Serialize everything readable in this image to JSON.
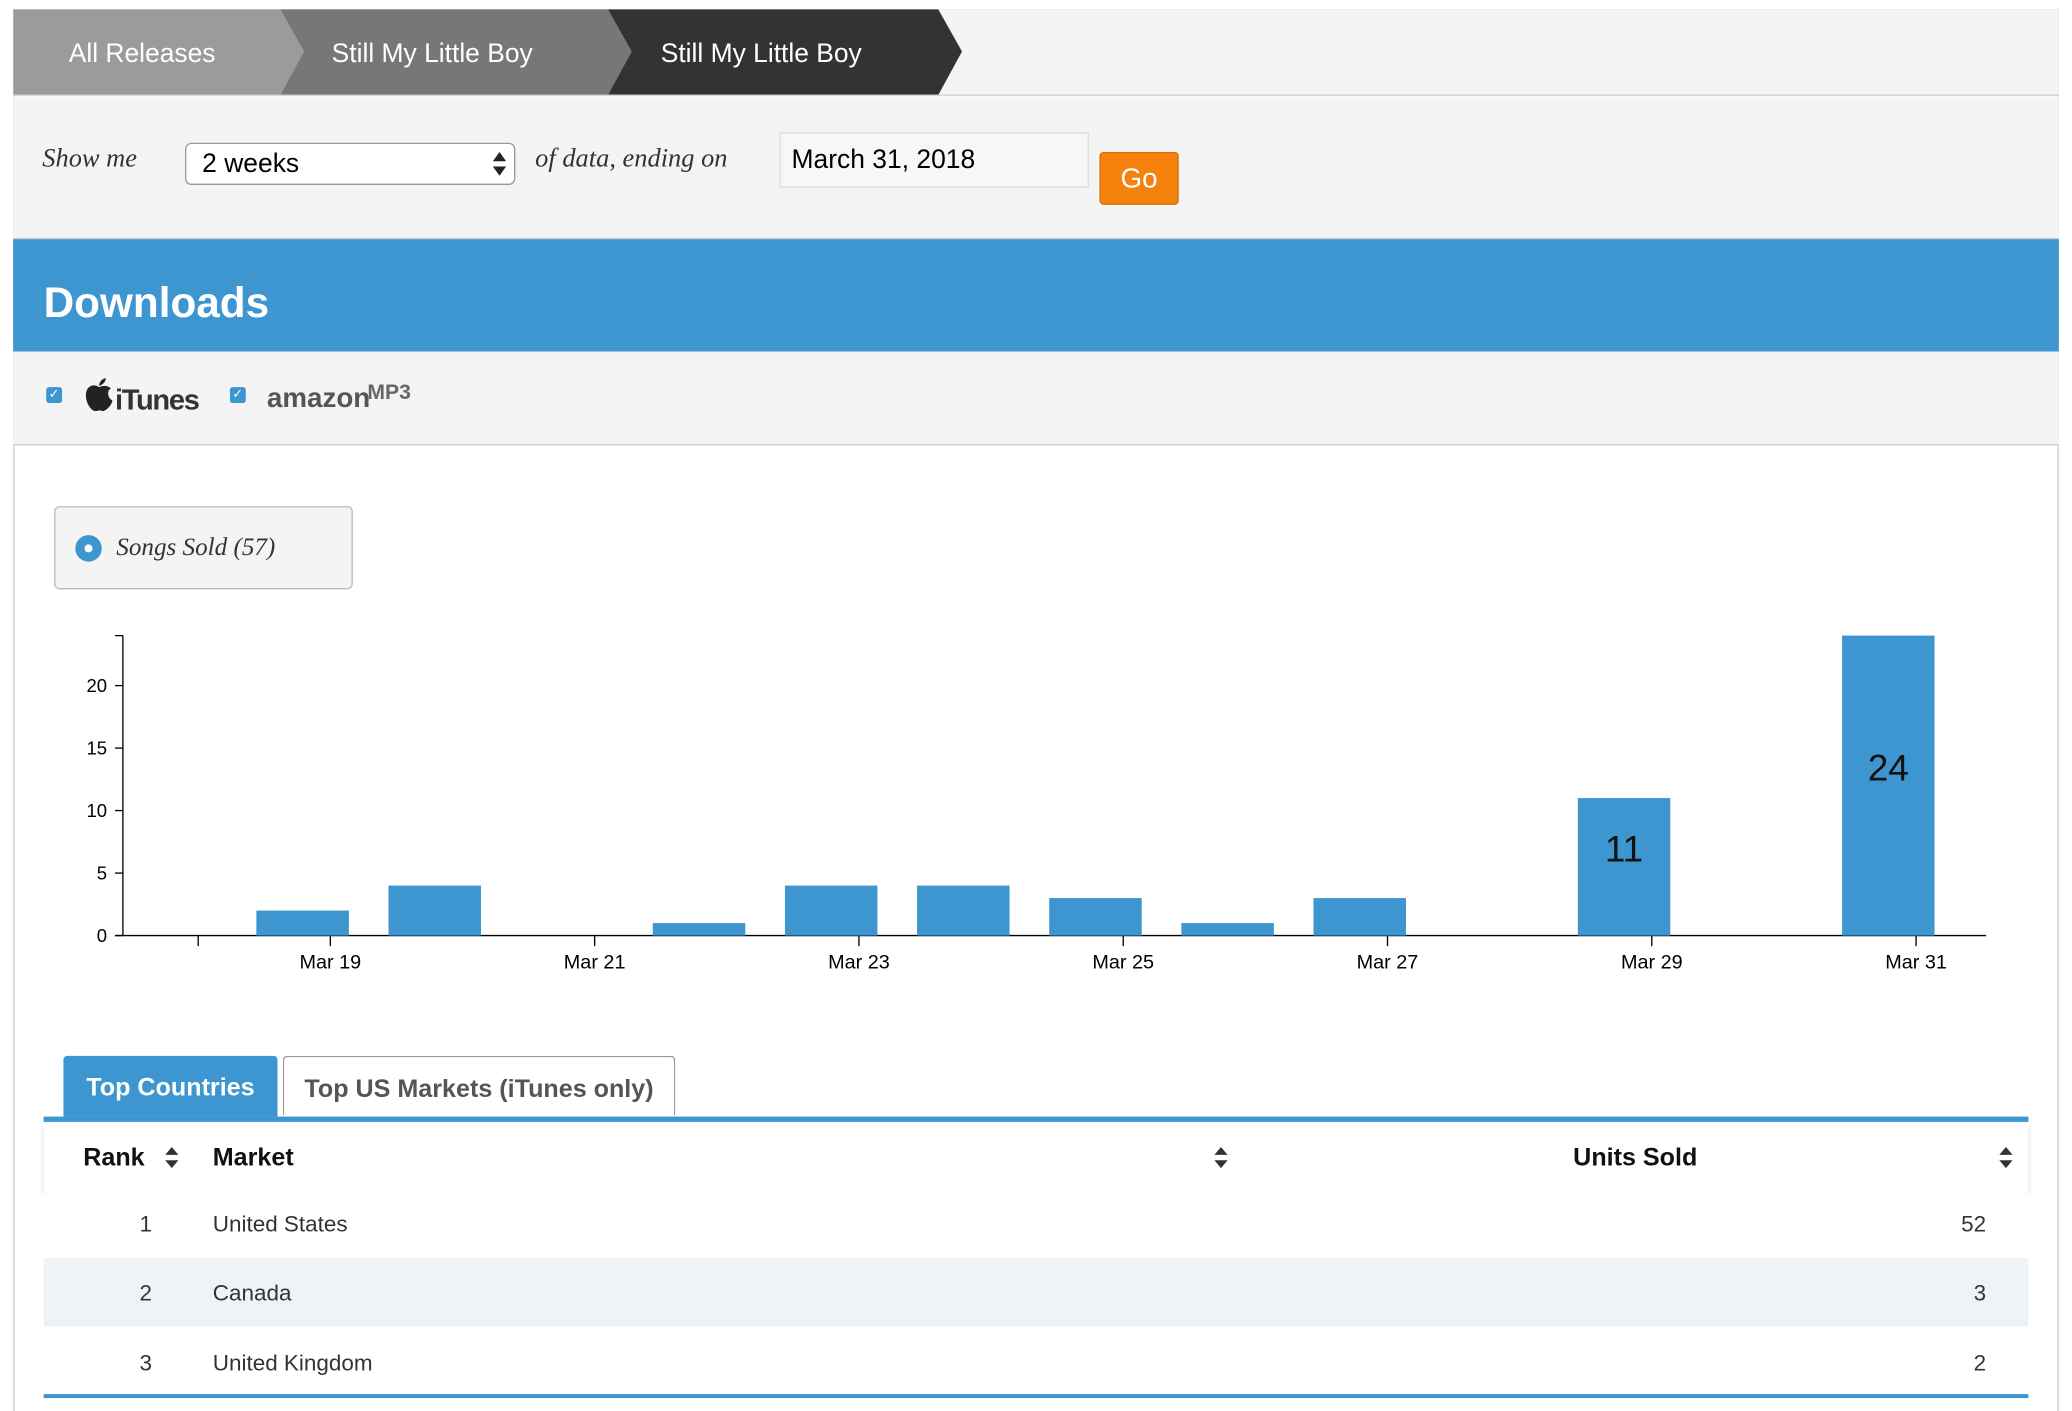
{
  "breadcrumbs": [
    "All Releases",
    "Still My Little Boy",
    "Still My Little Boy"
  ],
  "filter": {
    "label_before": "Show me",
    "period": "2 weeks",
    "label_after": "of data, ending on",
    "end_date": "March 31, 2018",
    "button": "Go"
  },
  "section": {
    "title": "Downloads",
    "itunes": "iTunes",
    "amazon": [
      "amazon",
      "MP3"
    ]
  },
  "legend": "Songs Sold (57)",
  "chart_data": {
    "type": "bar",
    "categories": [
      null,
      "Mar 19",
      null,
      "Mar 21",
      null,
      "Mar 23",
      null,
      "Mar 25",
      null,
      "Mar 27",
      null,
      "Mar 29",
      null,
      "Mar 31"
    ],
    "values": [
      0,
      2,
      4,
      0,
      1,
      4,
      4,
      3,
      1,
      3,
      0,
      11,
      0,
      24
    ],
    "value_labels": [
      null,
      null,
      null,
      null,
      null,
      null,
      null,
      null,
      null,
      null,
      null,
      "11",
      null,
      "24"
    ],
    "color": "#3d96cf",
    "ylim": [
      0,
      24
    ],
    "yticks": [
      0,
      5,
      10,
      15,
      20
    ],
    "grid": false
  },
  "tabs": [
    "Top Countries",
    "Top US Markets (iTunes only)"
  ],
  "table": {
    "columns": [
      "Rank",
      "Market",
      "Units Sold"
    ],
    "rows": [
      [
        1,
        "United States",
        52
      ],
      [
        2,
        "Canada",
        3
      ],
      [
        3,
        "United Kingdom",
        2
      ]
    ]
  }
}
